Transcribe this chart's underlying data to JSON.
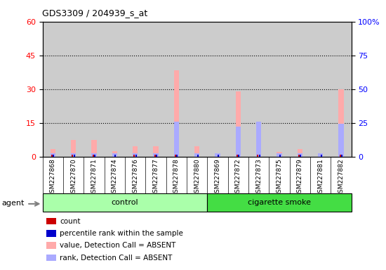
{
  "title": "GDS3309 / 204939_s_at",
  "samples": [
    "GSM227868",
    "GSM227870",
    "GSM227871",
    "GSM227874",
    "GSM227876",
    "GSM227877",
    "GSM227878",
    "GSM227880",
    "GSM227869",
    "GSM227872",
    "GSM227873",
    "GSM227875",
    "GSM227879",
    "GSM227881",
    "GSM227882"
  ],
  "n_control": 8,
  "n_smoke": 7,
  "value_absent": [
    3.5,
    7.5,
    7.5,
    2.5,
    4.5,
    4.5,
    38.5,
    4.5,
    1.5,
    29.0,
    15.0,
    2.0,
    3.5,
    1.5,
    30.0
  ],
  "rank_absent": [
    1.5,
    1.5,
    1.5,
    1.5,
    1.5,
    1.5,
    15.5,
    1.5,
    1.5,
    13.5,
    15.5,
    1.5,
    1.5,
    1.5,
    14.5
  ],
  "count": [
    1,
    1,
    1,
    0,
    1,
    1,
    1,
    0,
    0,
    1,
    1,
    0,
    1,
    0,
    1
  ],
  "rank": [
    1,
    1,
    1,
    1,
    1,
    1,
    1,
    1,
    1,
    1,
    1,
    1,
    1,
    1,
    1
  ],
  "left_ylim": [
    0,
    60
  ],
  "right_ylim": [
    0,
    100
  ],
  "left_yticks": [
    0,
    15,
    30,
    45,
    60
  ],
  "right_yticks": [
    0,
    25,
    50,
    75,
    100
  ],
  "right_yticklabels": [
    "0",
    "25",
    "50",
    "75",
    "100%"
  ],
  "dotted_lines": [
    15,
    30,
    45
  ],
  "color_count": "#cc0000",
  "color_rank": "#0000cc",
  "color_value_absent": "#ffaaaa",
  "color_rank_absent": "#aaaaff",
  "color_bar_bg": "#cccccc",
  "color_plot_bg": "#ffffff",
  "color_group_control": "#aaffaa",
  "color_group_smoke": "#44dd44",
  "legend_items": [
    {
      "label": "count",
      "color": "#cc0000"
    },
    {
      "label": "percentile rank within the sample",
      "color": "#0000cc"
    },
    {
      "label": "value, Detection Call = ABSENT",
      "color": "#ffaaaa"
    },
    {
      "label": "rank, Detection Call = ABSENT",
      "color": "#aaaaff"
    }
  ]
}
